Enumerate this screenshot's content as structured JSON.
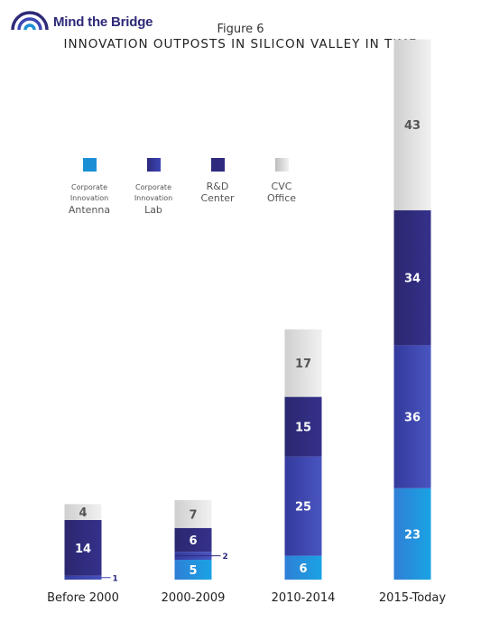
{
  "brand": {
    "name": "Mind the Bridge"
  },
  "figure_label": "Figure 6",
  "colors": {
    "antenna": "#1b8fd6",
    "lab": "#3b46b4",
    "rd": "#2e2a7e",
    "cvc": "#d7d7d7",
    "logo": "#2e2a78"
  },
  "legend": [
    {
      "key": "antenna",
      "line1": "Corporate",
      "line2": "Innovation",
      "line3": "Antenna"
    },
    {
      "key": "lab",
      "line1": "Corporate",
      "line2": "Innovation",
      "line3": "Lab"
    },
    {
      "key": "rd",
      "line1": "R&D",
      "line2": "Center"
    },
    {
      "key": "cvc",
      "line1": "CVC",
      "line2": "Office"
    }
  ],
  "chart_data": {
    "type": "bar",
    "stacked": true,
    "title": "INNOVATION OUTPOSTS IN SILICON VALLEY IN TIME",
    "categories": [
      "Before 2000",
      "2000-2009",
      "2010-2014",
      "2015-Today"
    ],
    "series": [
      {
        "name": "Corporate Innovation Antenna",
        "key": "antenna",
        "values": [
          0,
          5,
          6,
          23
        ]
      },
      {
        "name": "Corporate Innovation Lab",
        "key": "lab",
        "values": [
          1,
          2,
          25,
          36
        ]
      },
      {
        "name": "R&D Center",
        "key": "rd",
        "values": [
          14,
          6,
          15,
          34
        ]
      },
      {
        "name": "CVC Office",
        "key": "cvc",
        "values": [
          4,
          7,
          17,
          43
        ]
      }
    ],
    "value_labels": [
      [
        "",
        "1",
        "14",
        "4"
      ],
      [
        "5",
        "2",
        "6",
        "7"
      ],
      [
        "6",
        "25",
        "15",
        "17"
      ],
      [
        "23",
        "36",
        "34",
        "43"
      ]
    ],
    "legend_position": "upper-left",
    "grid": false
  }
}
